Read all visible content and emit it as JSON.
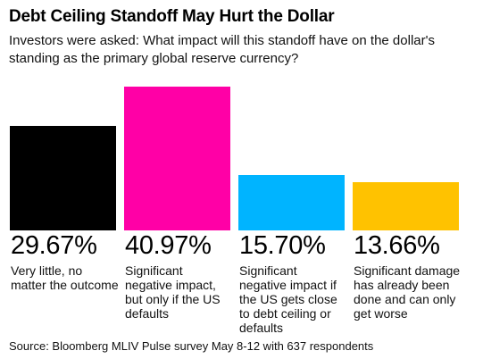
{
  "header": {
    "title": "Debt Ceiling Standoff May Hurt the Dollar",
    "subtitle": "Investors were asked: What impact will this standoff have on the dollar's standing as the primary global reserve currency?"
  },
  "footer": {
    "source": "Source: Bloomberg MLIV Pulse survey May 8-12 with 637 respondents"
  },
  "chart_data": {
    "type": "bar",
    "title": "Debt Ceiling Standoff May Hurt the Dollar",
    "subtitle": "Investors were asked: What impact will this standoff have on the dollar's standing as the primary global reserve currency?",
    "categories": [
      "Very little, no matter the outcome",
      "Significant negative impact, but only if the US defaults",
      "Significant negative impact if the US gets close to debt ceiling or defaults",
      "Significant damage has already been done and can only get worse"
    ],
    "values": [
      29.67,
      40.97,
      15.7,
      13.66
    ],
    "value_labels": [
      "29.67%",
      "40.97%",
      "15.70%",
      "13.66%"
    ],
    "colors": [
      "#000000",
      "#ff00a6",
      "#00b4ff",
      "#ffc200"
    ],
    "ylim": [
      0,
      40.97
    ],
    "grid": false,
    "legend": "none"
  }
}
